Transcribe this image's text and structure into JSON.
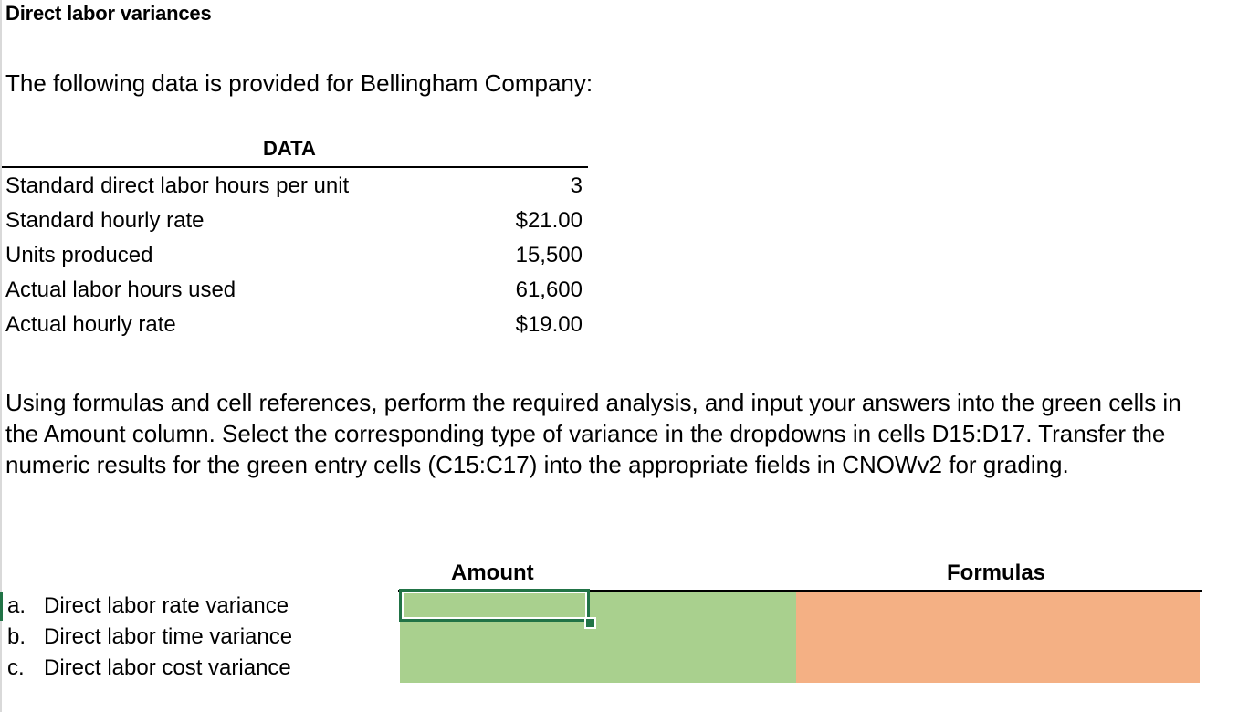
{
  "title": "Direct labor variances",
  "intro": "The following data is provided for Bellingham Company:",
  "data_table": {
    "header": "DATA",
    "rows": [
      {
        "label": "Standard direct labor hours per unit",
        "value": "3"
      },
      {
        "label": "Standard hourly rate",
        "value": "$21.00"
      },
      {
        "label": "Units produced",
        "value": "15,500"
      },
      {
        "label": "Actual labor hours used",
        "value": "61,600"
      },
      {
        "label": "Actual hourly rate",
        "value": "$19.00"
      }
    ]
  },
  "instructions": "Using formulas and cell references, perform the required analysis, and input your answers into the green cells in the Amount column. Select the corresponding type of variance in the dropdowns in cells D15:D17. Transfer the numeric results for the green entry cells (C15:C17) into the appropriate fields in CNOWv2 for grading.",
  "requirements": {
    "amount_header": "Amount",
    "formulas_header": "Formulas",
    "rows": [
      {
        "letter": "a.",
        "label": "Direct labor rate variance",
        "amount": "",
        "formula": ""
      },
      {
        "letter": "b.",
        "label": "Direct labor time variance",
        "amount": "",
        "formula": ""
      },
      {
        "letter": "c.",
        "label": "Direct labor cost variance",
        "amount": "",
        "formula": ""
      }
    ]
  },
  "colors": {
    "entry_cell_green": "#a9d08e",
    "formula_cell_orange": "#f4b084",
    "selection_green": "#217346"
  }
}
